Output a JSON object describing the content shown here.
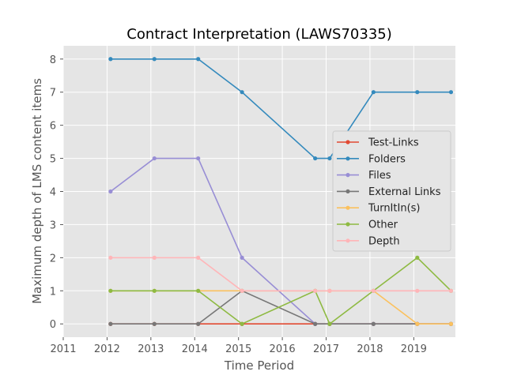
{
  "chart_data": {
    "type": "line",
    "title": "Contract Interpretation (LAWS70335)",
    "xlabel": "Time Period",
    "ylabel": "Maximum depth of LMS content items",
    "xlim": [
      2011,
      2019.95
    ],
    "ylim": [
      -0.4,
      8.4
    ],
    "xticks": [
      2011,
      2012,
      2013,
      2014,
      2015,
      2016,
      2017,
      2018,
      2019
    ],
    "yticks": [
      0,
      1,
      2,
      3,
      4,
      5,
      6,
      7,
      8
    ],
    "grid": true,
    "legend_position": "center-right",
    "x": [
      2012.08,
      2013.08,
      2014.08,
      2015.08,
      2016.75,
      2017.08,
      2018.08,
      2019.08,
      2019.85
    ],
    "series": [
      {
        "name": "Test-Links",
        "color": "#E24A33",
        "values": [
          0,
          0,
          0,
          0,
          0,
          0,
          0,
          0,
          0
        ]
      },
      {
        "name": "Folders",
        "color": "#348ABD",
        "values": [
          8,
          8,
          8,
          7,
          5,
          5,
          7,
          7,
          7
        ]
      },
      {
        "name": "Files",
        "color": "#988ED5",
        "values": [
          4,
          5,
          5,
          2,
          0,
          0,
          0,
          0,
          0
        ]
      },
      {
        "name": "External Links",
        "color": "#777777",
        "values": [
          0,
          0,
          0,
          1,
          0,
          0,
          0,
          0,
          0
        ]
      },
      {
        "name": "TurnItIn(s)",
        "color": "#FBC15E",
        "values": [
          1,
          1,
          1,
          1,
          1,
          1,
          1,
          0,
          0
        ]
      },
      {
        "name": "Other",
        "color": "#8EBA42",
        "values": [
          1,
          1,
          1,
          0,
          1,
          0,
          1,
          2,
          1
        ]
      },
      {
        "name": "Depth",
        "color": "#FFB5B8",
        "values": [
          2,
          2,
          2,
          1,
          1,
          1,
          1,
          1,
          1
        ]
      }
    ]
  }
}
